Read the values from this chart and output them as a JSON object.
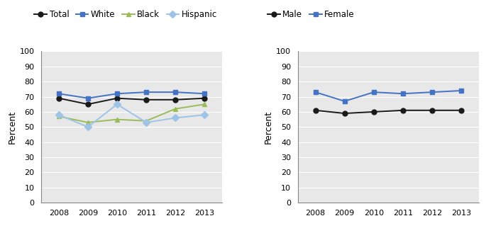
{
  "years": [
    2008,
    2009,
    2010,
    2011,
    2012,
    2013
  ],
  "left_chart": {
    "ylabel": "Percent",
    "series": {
      "Total": {
        "values": [
          69,
          65,
          69,
          68,
          68,
          69
        ],
        "color": "#1a1a1a",
        "marker": "o",
        "linestyle": "-"
      },
      "White": {
        "values": [
          72,
          69,
          72,
          73,
          73,
          72
        ],
        "color": "#4472c4",
        "marker": "s",
        "linestyle": "-"
      },
      "Black": {
        "values": [
          57,
          53,
          55,
          54,
          62,
          65
        ],
        "color": "#9bbb59",
        "marker": "^",
        "linestyle": "-"
      },
      "Hispanic": {
        "values": [
          58,
          50,
          65,
          53,
          56,
          58
        ],
        "color": "#9dc3e6",
        "marker": "D",
        "linestyle": "-"
      }
    },
    "legend_order": [
      "Total",
      "White",
      "Black",
      "Hispanic"
    ],
    "ylim": [
      0,
      100
    ],
    "yticks": [
      0,
      10,
      20,
      30,
      40,
      50,
      60,
      70,
      80,
      90,
      100
    ]
  },
  "right_chart": {
    "ylabel": "Percent",
    "series": {
      "Male": {
        "values": [
          61,
          59,
          60,
          61,
          61,
          61
        ],
        "color": "#1a1a1a",
        "marker": "o",
        "linestyle": "-"
      },
      "Female": {
        "values": [
          73,
          67,
          73,
          72,
          73,
          74
        ],
        "color": "#4472c4",
        "marker": "s",
        "linestyle": "-"
      }
    },
    "legend_order": [
      "Male",
      "Female"
    ],
    "ylim": [
      0,
      100
    ],
    "yticks": [
      0,
      10,
      20,
      30,
      40,
      50,
      60,
      70,
      80,
      90,
      100
    ]
  },
  "background_color": "#ffffff",
  "plot_bg_color": "#e8e8e8",
  "grid_color": "#ffffff",
  "font_size": 9,
  "tick_label_size": 8,
  "legend_font_size": 8.5,
  "linewidth": 1.4,
  "markersize": 5
}
